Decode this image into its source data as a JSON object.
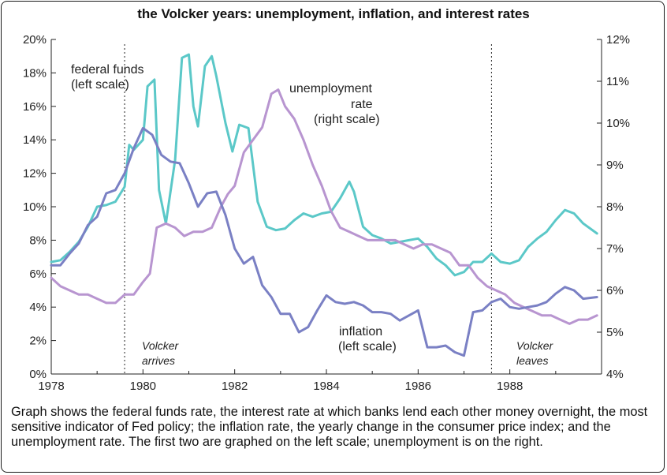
{
  "title": "the Volcker years: unemployment, inflation, and interest rates",
  "caption": "Graph shows the federal funds rate, the interest rate at which banks lend each other money overnight, the most sensitive indicator of Fed policy; the inflation rate, the yearly change in the consumer price index; and the unemployment rate. The first two are graphed on the left scale; unemployment is on the right.",
  "annotations": {
    "fedfunds_l1": "federal funds",
    "fedfunds_l2": "(left scale)",
    "unemp_l1": "unemployment",
    "unemp_l2": "rate",
    "unemp_l3": "(right scale)",
    "infl_l1": "inflation",
    "infl_l2": "(left scale)",
    "arrives_l1": "Volcker",
    "arrives_l2": "arrives",
    "leaves_l1": "Volcker",
    "leaves_l2": "leaves"
  },
  "colors": {
    "federal_funds": "#5bc8c8",
    "unemployment": "#b895d0",
    "inflation": "#7a80c4"
  },
  "chart_data": {
    "type": "line",
    "title": "the Volcker years: unemployment, inflation, and interest rates",
    "xlim": [
      1978,
      1990
    ],
    "x_ticks": [
      "1978",
      "1980",
      "1982",
      "1984",
      "1986",
      "1988"
    ],
    "x_tick_values": [
      1978,
      1980,
      1982,
      1984,
      1986,
      1988
    ],
    "ylim_left": [
      0,
      20
    ],
    "y_left_ticks": [
      "0%",
      "2%",
      "4%",
      "6%",
      "8%",
      "10%",
      "12%",
      "14%",
      "16%",
      "18%",
      "20%"
    ],
    "ylim_right": [
      4,
      12
    ],
    "y_right_ticks": [
      "4%",
      "5%",
      "6%",
      "7%",
      "8%",
      "9%",
      "10%",
      "11%",
      "12%"
    ],
    "events": [
      {
        "x": 1979.6
      },
      {
        "x": 1987.6
      }
    ],
    "series": [
      {
        "key": "federal_funds",
        "axis": "left",
        "x": [
          1978.0,
          1978.2,
          1978.4,
          1978.6,
          1978.8,
          1979.0,
          1979.2,
          1979.4,
          1979.6,
          1979.7,
          1979.8,
          1980.0,
          1980.1,
          1980.25,
          1980.35,
          1980.5,
          1980.7,
          1980.85,
          1981.0,
          1981.1,
          1981.2,
          1981.35,
          1981.5,
          1981.6,
          1981.8,
          1981.95,
          1982.1,
          1982.3,
          1982.5,
          1982.7,
          1982.9,
          1983.1,
          1983.3,
          1983.5,
          1983.7,
          1983.9,
          1984.1,
          1984.3,
          1984.5,
          1984.6,
          1984.8,
          1985.0,
          1985.2,
          1985.4,
          1985.6,
          1985.8,
          1986.0,
          1986.2,
          1986.4,
          1986.6,
          1986.8,
          1987.0,
          1987.2,
          1987.4,
          1987.6,
          1987.8,
          1988.0,
          1988.2,
          1988.4,
          1988.6,
          1988.8,
          1989.0,
          1989.2,
          1989.4,
          1989.6,
          1989.9
        ],
        "values": [
          6.7,
          6.8,
          7.3,
          7.9,
          8.8,
          10.0,
          10.1,
          10.3,
          11.2,
          13.7,
          13.4,
          14.0,
          17.2,
          17.6,
          11.0,
          9.0,
          12.8,
          18.9,
          19.1,
          16.0,
          14.8,
          18.4,
          19.0,
          17.8,
          15.0,
          13.3,
          14.9,
          14.7,
          10.3,
          8.8,
          8.6,
          8.7,
          9.2,
          9.6,
          9.4,
          9.6,
          9.7,
          10.5,
          11.5,
          10.9,
          8.8,
          8.3,
          8.1,
          7.8,
          7.9,
          8.0,
          8.1,
          7.6,
          6.9,
          6.5,
          5.9,
          6.1,
          6.7,
          6.7,
          7.2,
          6.7,
          6.6,
          6.8,
          7.6,
          8.1,
          8.5,
          9.2,
          9.8,
          9.6,
          9.0,
          8.4
        ]
      },
      {
        "key": "unemployment",
        "axis": "right",
        "x": [
          1978.0,
          1978.2,
          1978.4,
          1978.6,
          1978.8,
          1979.0,
          1979.2,
          1979.4,
          1979.6,
          1979.8,
          1980.0,
          1980.15,
          1980.3,
          1980.5,
          1980.7,
          1980.9,
          1981.1,
          1981.3,
          1981.5,
          1981.7,
          1981.85,
          1982.0,
          1982.2,
          1982.4,
          1982.6,
          1982.8,
          1982.95,
          1983.1,
          1983.3,
          1983.5,
          1983.7,
          1983.9,
          1984.1,
          1984.3,
          1984.5,
          1984.7,
          1984.9,
          1985.1,
          1985.3,
          1985.5,
          1985.7,
          1985.9,
          1986.1,
          1986.3,
          1986.5,
          1986.7,
          1986.9,
          1987.1,
          1987.3,
          1987.5,
          1987.7,
          1987.9,
          1988.1,
          1988.3,
          1988.5,
          1988.7,
          1988.9,
          1989.1,
          1989.3,
          1989.5,
          1989.7,
          1989.9
        ],
        "values": [
          6.3,
          6.1,
          6.0,
          5.9,
          5.9,
          5.8,
          5.7,
          5.7,
          5.9,
          5.9,
          6.2,
          6.4,
          7.5,
          7.6,
          7.5,
          7.3,
          7.4,
          7.4,
          7.5,
          8.0,
          8.3,
          8.5,
          9.3,
          9.6,
          9.9,
          10.7,
          10.8,
          10.4,
          10.1,
          9.6,
          9.0,
          8.5,
          7.9,
          7.5,
          7.4,
          7.3,
          7.2,
          7.2,
          7.2,
          7.2,
          7.1,
          7.0,
          7.1,
          7.1,
          7.0,
          6.9,
          6.6,
          6.6,
          6.3,
          6.1,
          6.0,
          5.9,
          5.7,
          5.6,
          5.5,
          5.4,
          5.4,
          5.3,
          5.2,
          5.3,
          5.3,
          5.4
        ]
      },
      {
        "key": "inflation",
        "axis": "left",
        "x": [
          1978.0,
          1978.2,
          1978.4,
          1978.6,
          1978.8,
          1979.0,
          1979.2,
          1979.4,
          1979.6,
          1979.8,
          1980.0,
          1980.2,
          1980.4,
          1980.6,
          1980.8,
          1981.0,
          1981.2,
          1981.4,
          1981.6,
          1981.8,
          1982.0,
          1982.2,
          1982.4,
          1982.6,
          1982.8,
          1983.0,
          1983.2,
          1983.4,
          1983.6,
          1983.8,
          1984.0,
          1984.2,
          1984.4,
          1984.6,
          1984.8,
          1985.0,
          1985.2,
          1985.4,
          1985.6,
          1985.8,
          1986.0,
          1986.2,
          1986.4,
          1986.6,
          1986.8,
          1987.0,
          1987.2,
          1987.4,
          1987.6,
          1987.8,
          1988.0,
          1988.2,
          1988.4,
          1988.6,
          1988.8,
          1989.0,
          1989.2,
          1989.4,
          1989.6,
          1989.9
        ],
        "values": [
          6.5,
          6.5,
          7.2,
          7.8,
          8.9,
          9.4,
          10.8,
          11.0,
          12.0,
          13.5,
          14.7,
          14.3,
          13.1,
          12.7,
          12.6,
          11.4,
          10.0,
          10.8,
          10.9,
          9.5,
          7.5,
          6.6,
          7.0,
          5.3,
          4.6,
          3.6,
          3.6,
          2.5,
          2.8,
          3.8,
          4.7,
          4.3,
          4.2,
          4.3,
          4.1,
          3.7,
          3.7,
          3.6,
          3.2,
          3.5,
          3.8,
          1.6,
          1.6,
          1.7,
          1.3,
          1.1,
          3.7,
          3.8,
          4.3,
          4.5,
          4.0,
          3.9,
          4.0,
          4.1,
          4.3,
          4.8,
          5.2,
          5.0,
          4.5,
          4.6
        ]
      }
    ]
  }
}
